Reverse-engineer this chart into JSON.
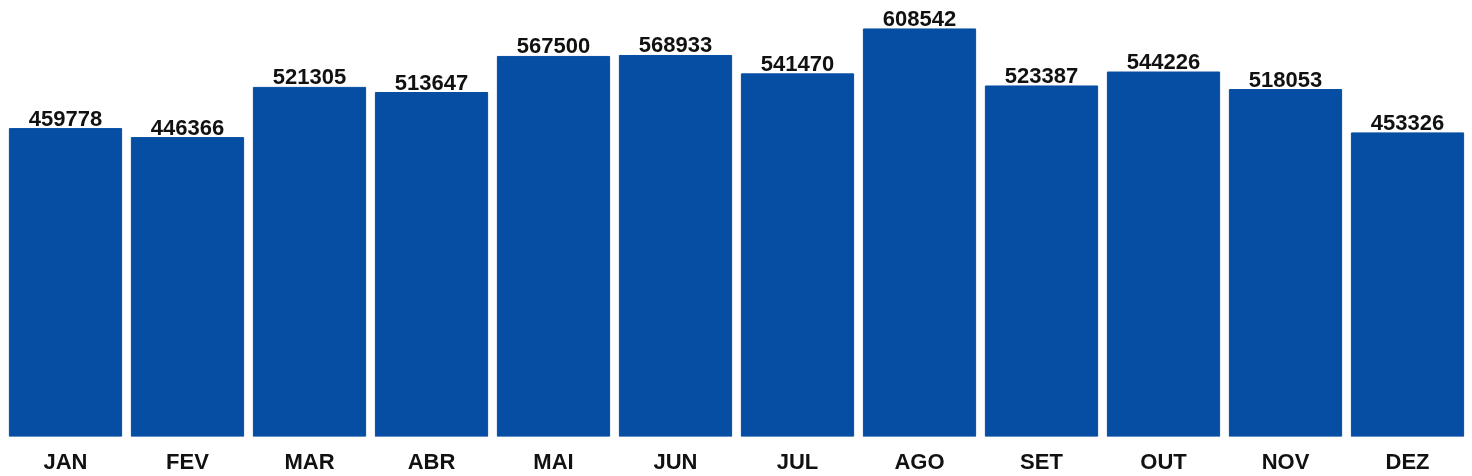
{
  "chart_data": {
    "type": "bar",
    "categories": [
      "JAN",
      "FEV",
      "MAR",
      "ABR",
      "MAI",
      "JUN",
      "JUL",
      "AGO",
      "SET",
      "OUT",
      "NOV",
      "DEZ"
    ],
    "values": [
      459778,
      446366,
      521305,
      513647,
      567500,
      568933,
      541470,
      608542,
      523387,
      544226,
      518053,
      453326
    ],
    "color": "#054ea3",
    "data_labels": true,
    "grid": false,
    "tick_labels": "x"
  }
}
